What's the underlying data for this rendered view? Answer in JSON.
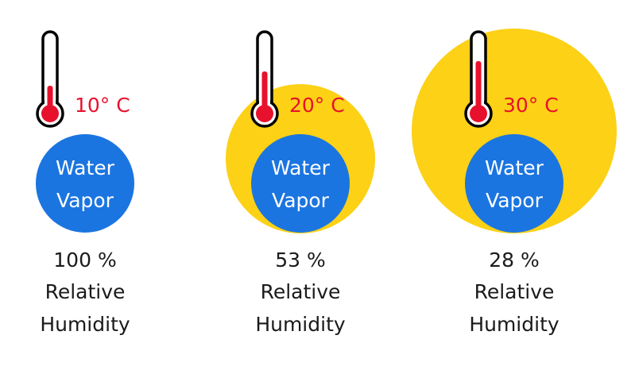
{
  "panels": [
    {
      "temperature": "10° C",
      "vapor": [
        "Water",
        "Vapor"
      ],
      "humidity": [
        "100 %",
        "Relative",
        "Humidity"
      ]
    },
    {
      "temperature": "20° C",
      "vapor": [
        "Water",
        "Vapor"
      ],
      "humidity": [
        "53 %",
        "Relative",
        "Humidity"
      ]
    },
    {
      "temperature": "30° C",
      "vapor": [
        "Water",
        "Vapor"
      ],
      "humidity": [
        "28 %",
        "Relative",
        "Humidity"
      ]
    }
  ]
}
